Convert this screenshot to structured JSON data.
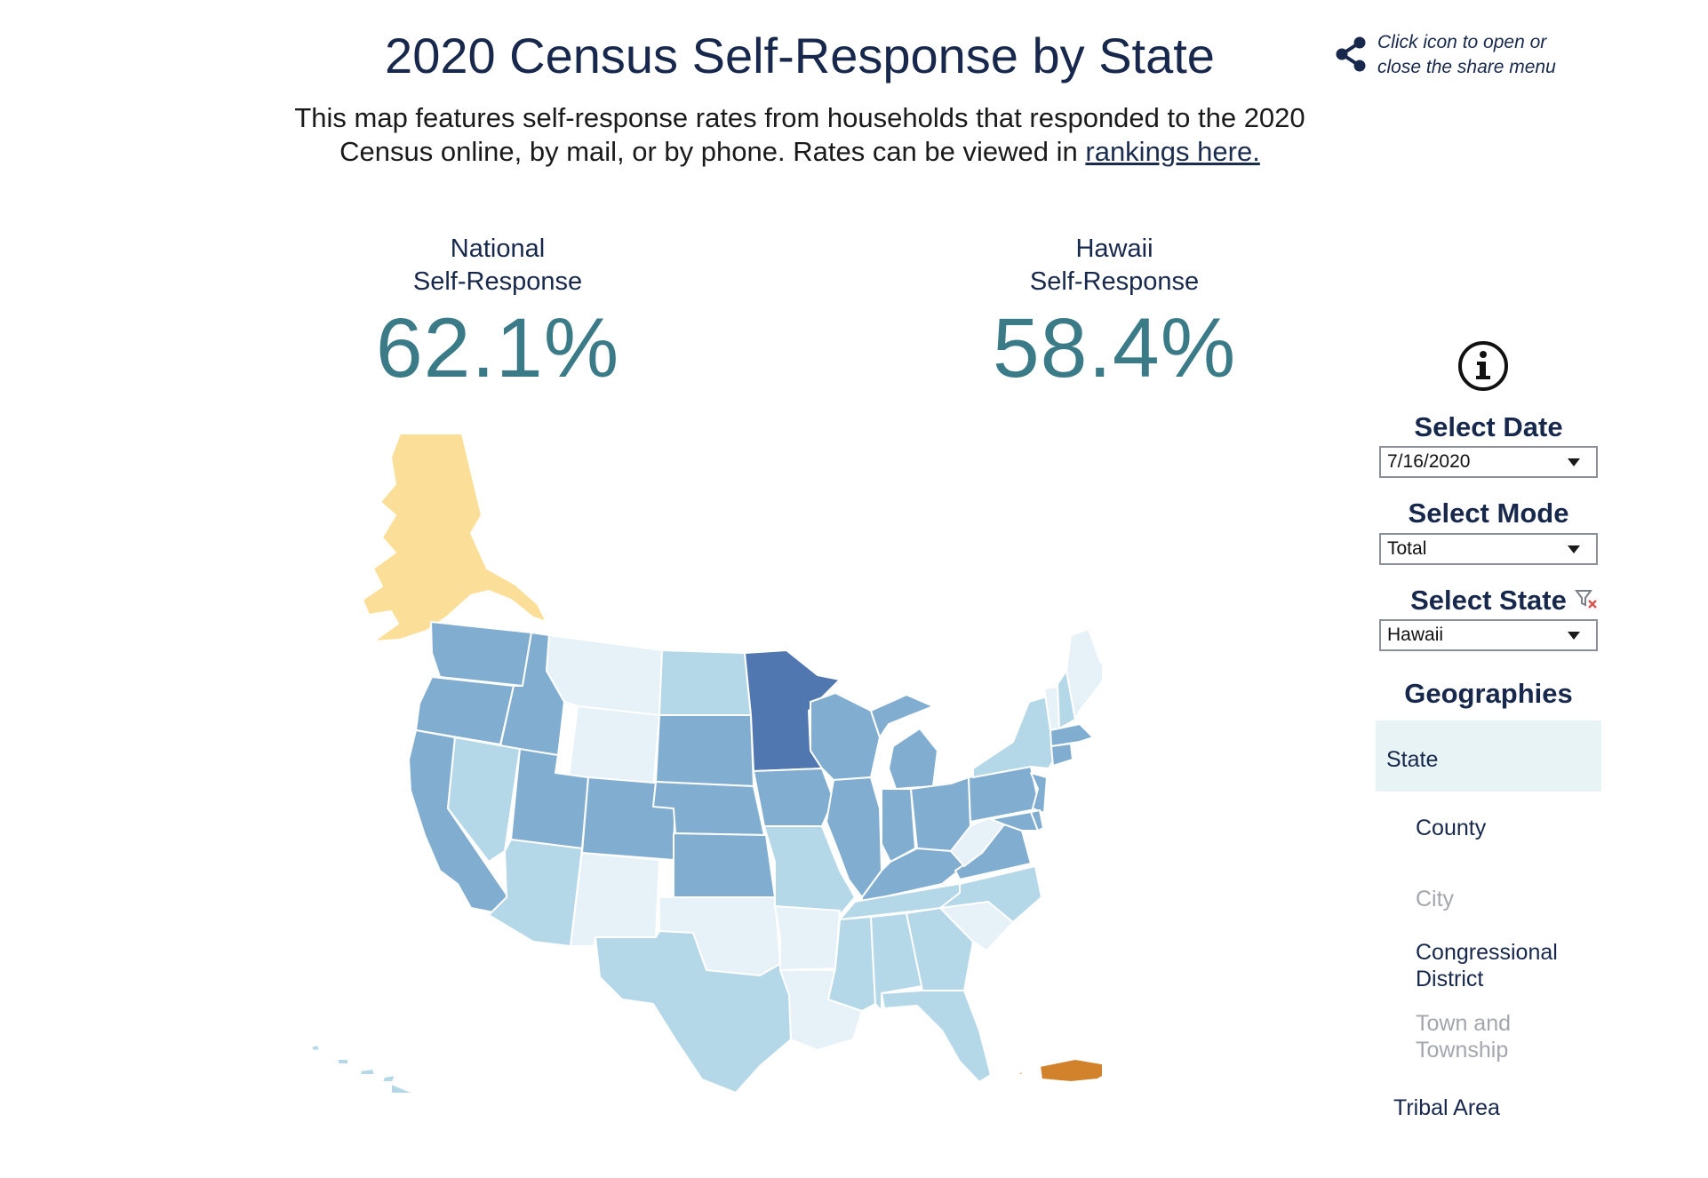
{
  "header": {
    "title": "2020 Census Self-Response by State",
    "subtitle_main": "This map features self-response rates from households that responded to the 2020 Census online, by mail, or by phone. Rates can be viewed in",
    "subtitle_link": "rankings here.",
    "share_text_line1": "Click icon to open or",
    "share_text_line2": "close the share menu"
  },
  "stats": {
    "national_label_line1": "National",
    "national_label_line2": "Self-Response",
    "national_value": "62.1%",
    "state_label_line1": "Hawaii",
    "state_label_line2": "Self-Response",
    "state_value": "58.4%"
  },
  "filters": {
    "date_label": "Select Date",
    "date_value": "7/16/2020",
    "mode_label": "Select Mode",
    "mode_value": "Total",
    "state_label": "Select State",
    "state_value": "Hawaii"
  },
  "geographies": {
    "heading": "Geographies",
    "items": [
      {
        "label": "State",
        "state": "selected"
      },
      {
        "label": "County",
        "state": "enabled"
      },
      {
        "label": "City",
        "state": "disabled"
      },
      {
        "label": "Congressional District",
        "state": "enabled"
      },
      {
        "label": "Town and Township",
        "state": "disabled"
      },
      {
        "label": "Tribal Area",
        "state": "enabled"
      }
    ]
  },
  "icons": {
    "share": "share-icon",
    "info": "info-icon",
    "clear_filter": "clear-filter-icon",
    "dropdown": "chevron-down-icon"
  },
  "colors": {
    "title": "#17284c",
    "stat_value": "#3b7b88",
    "geo_selected_bg": "#e8f3f5",
    "alaska": "#fbdf98",
    "puerto_rico": "#d3822c",
    "minnesota": "#5077b0"
  },
  "map_data": {
    "type": "choropleth",
    "classes": {
      "lightest": "#e6f2f7",
      "light": "#b5d8e8",
      "medium": "#81aed0",
      "darkest": "#5077b0"
    },
    "regions": [
      {
        "name": "Alaska",
        "color": "#fbdf98"
      },
      {
        "name": "Hawaii",
        "color": "#b5d8e8"
      },
      {
        "name": "Puerto Rico",
        "color": "#d3822c"
      },
      {
        "name": "Washington",
        "color": "#81aed0"
      },
      {
        "name": "Oregon",
        "color": "#81aed0"
      },
      {
        "name": "California",
        "color": "#81aed0"
      },
      {
        "name": "Idaho",
        "color": "#81aed0"
      },
      {
        "name": "Nevada",
        "color": "#b5d8e8"
      },
      {
        "name": "Utah",
        "color": "#81aed0"
      },
      {
        "name": "Arizona",
        "color": "#b5d8e8"
      },
      {
        "name": "Montana",
        "color": "#e6f2f7"
      },
      {
        "name": "Wyoming",
        "color": "#e6f2f7"
      },
      {
        "name": "Colorado",
        "color": "#81aed0"
      },
      {
        "name": "New Mexico",
        "color": "#e6f2f7"
      },
      {
        "name": "North Dakota",
        "color": "#b5d8e8"
      },
      {
        "name": "South Dakota",
        "color": "#81aed0"
      },
      {
        "name": "Nebraska",
        "color": "#81aed0"
      },
      {
        "name": "Kansas",
        "color": "#81aed0"
      },
      {
        "name": "Oklahoma",
        "color": "#e6f2f7"
      },
      {
        "name": "Texas",
        "color": "#b5d8e8"
      },
      {
        "name": "Minnesota",
        "color": "#5077b0"
      },
      {
        "name": "Iowa",
        "color": "#81aed0"
      },
      {
        "name": "Missouri",
        "color": "#b5d8e8"
      },
      {
        "name": "Arkansas",
        "color": "#e6f2f7"
      },
      {
        "name": "Louisiana",
        "color": "#e6f2f7"
      },
      {
        "name": "Wisconsin",
        "color": "#81aed0"
      },
      {
        "name": "Illinois",
        "color": "#81aed0"
      },
      {
        "name": "Michigan",
        "color": "#81aed0"
      },
      {
        "name": "Indiana",
        "color": "#81aed0"
      },
      {
        "name": "Ohio",
        "color": "#81aed0"
      },
      {
        "name": "Kentucky",
        "color": "#81aed0"
      },
      {
        "name": "Tennessee",
        "color": "#b5d8e8"
      },
      {
        "name": "Mississippi",
        "color": "#b5d8e8"
      },
      {
        "name": "Alabama",
        "color": "#b5d8e8"
      },
      {
        "name": "Georgia",
        "color": "#b5d8e8"
      },
      {
        "name": "Florida",
        "color": "#b5d8e8"
      },
      {
        "name": "South Carolina",
        "color": "#e6f2f7"
      },
      {
        "name": "North Carolina",
        "color": "#b5d8e8"
      },
      {
        "name": "Virginia",
        "color": "#81aed0"
      },
      {
        "name": "West Virginia",
        "color": "#e6f2f7"
      },
      {
        "name": "Pennsylvania",
        "color": "#81aed0"
      },
      {
        "name": "New York",
        "color": "#b5d8e8"
      },
      {
        "name": "Maine",
        "color": "#e6f2f7"
      },
      {
        "name": "Vermont",
        "color": "#e6f2f7"
      },
      {
        "name": "New Hampshire",
        "color": "#b5d8e8"
      },
      {
        "name": "Massachusetts",
        "color": "#81aed0"
      },
      {
        "name": "Connecticut",
        "color": "#81aed0"
      },
      {
        "name": "New Jersey",
        "color": "#81aed0"
      },
      {
        "name": "Maryland",
        "color": "#81aed0"
      },
      {
        "name": "Delaware",
        "color": "#81aed0"
      }
    ]
  }
}
